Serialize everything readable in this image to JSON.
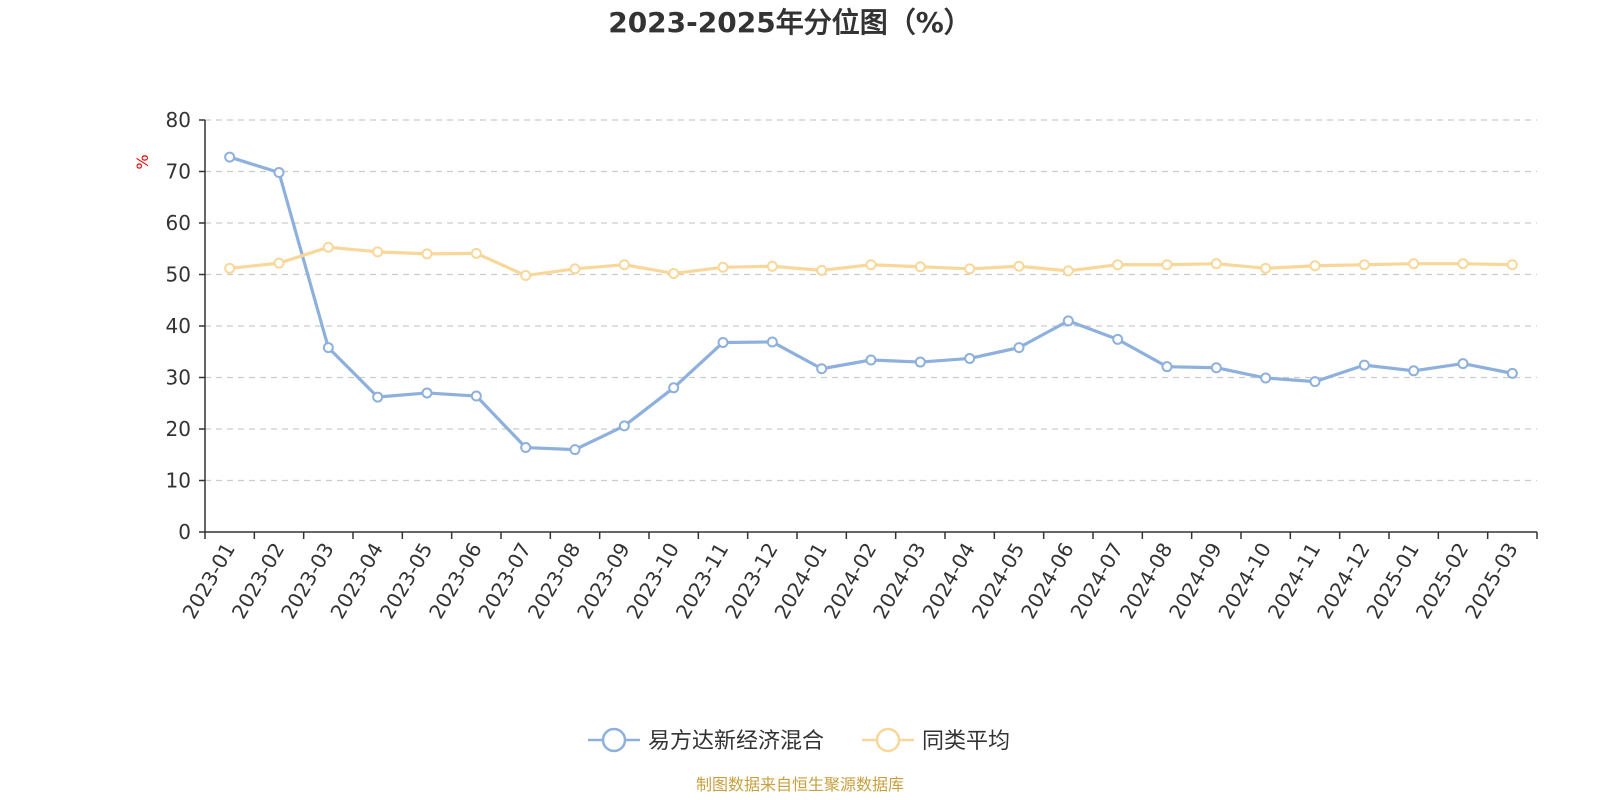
{
  "chart_data": {
    "type": "line",
    "title": "2023-2025年分位图（%）",
    "ylabel": "%",
    "xlabel": "",
    "ylim": [
      0,
      80
    ],
    "yticks": [
      0,
      10,
      20,
      30,
      40,
      50,
      60,
      70,
      80
    ],
    "grid": true,
    "legend_position": "bottom",
    "categories": [
      "2023-01",
      "2023-02",
      "2023-03",
      "2023-04",
      "2023-05",
      "2023-06",
      "2023-07",
      "2023-08",
      "2023-09",
      "2023-10",
      "2023-11",
      "2023-12",
      "2024-01",
      "2024-02",
      "2024-03",
      "2024-04",
      "2024-05",
      "2024-06",
      "2024-07",
      "2024-08",
      "2024-09",
      "2024-10",
      "2024-11",
      "2024-12",
      "2025-01",
      "2025-02",
      "2025-03"
    ],
    "series": [
      {
        "name": "易方达新经济混合",
        "color": "#8eb0dc",
        "values": [
          72.8,
          69.8,
          35.8,
          26.2,
          27.0,
          26.4,
          16.4,
          16.0,
          20.6,
          28.0,
          36.8,
          36.9,
          31.7,
          33.4,
          33.0,
          33.7,
          35.8,
          41.0,
          37.4,
          32.1,
          31.9,
          29.9,
          29.2,
          32.4,
          31.3,
          32.7,
          30.8
        ]
      },
      {
        "name": "同类平均",
        "color": "#f8d89a",
        "values": [
          51.2,
          52.2,
          55.3,
          54.4,
          54.0,
          54.1,
          49.8,
          51.1,
          51.9,
          50.2,
          51.4,
          51.6,
          50.8,
          51.9,
          51.5,
          51.1,
          51.6,
          50.7,
          51.9,
          51.9,
          52.1,
          51.2,
          51.7,
          51.9,
          52.1,
          52.1,
          51.9
        ]
      }
    ],
    "unit_color": "#ff0000"
  },
  "footer": {
    "source_text": "制图数据来自恒生聚源数据库",
    "source_color": "#c8a040"
  }
}
